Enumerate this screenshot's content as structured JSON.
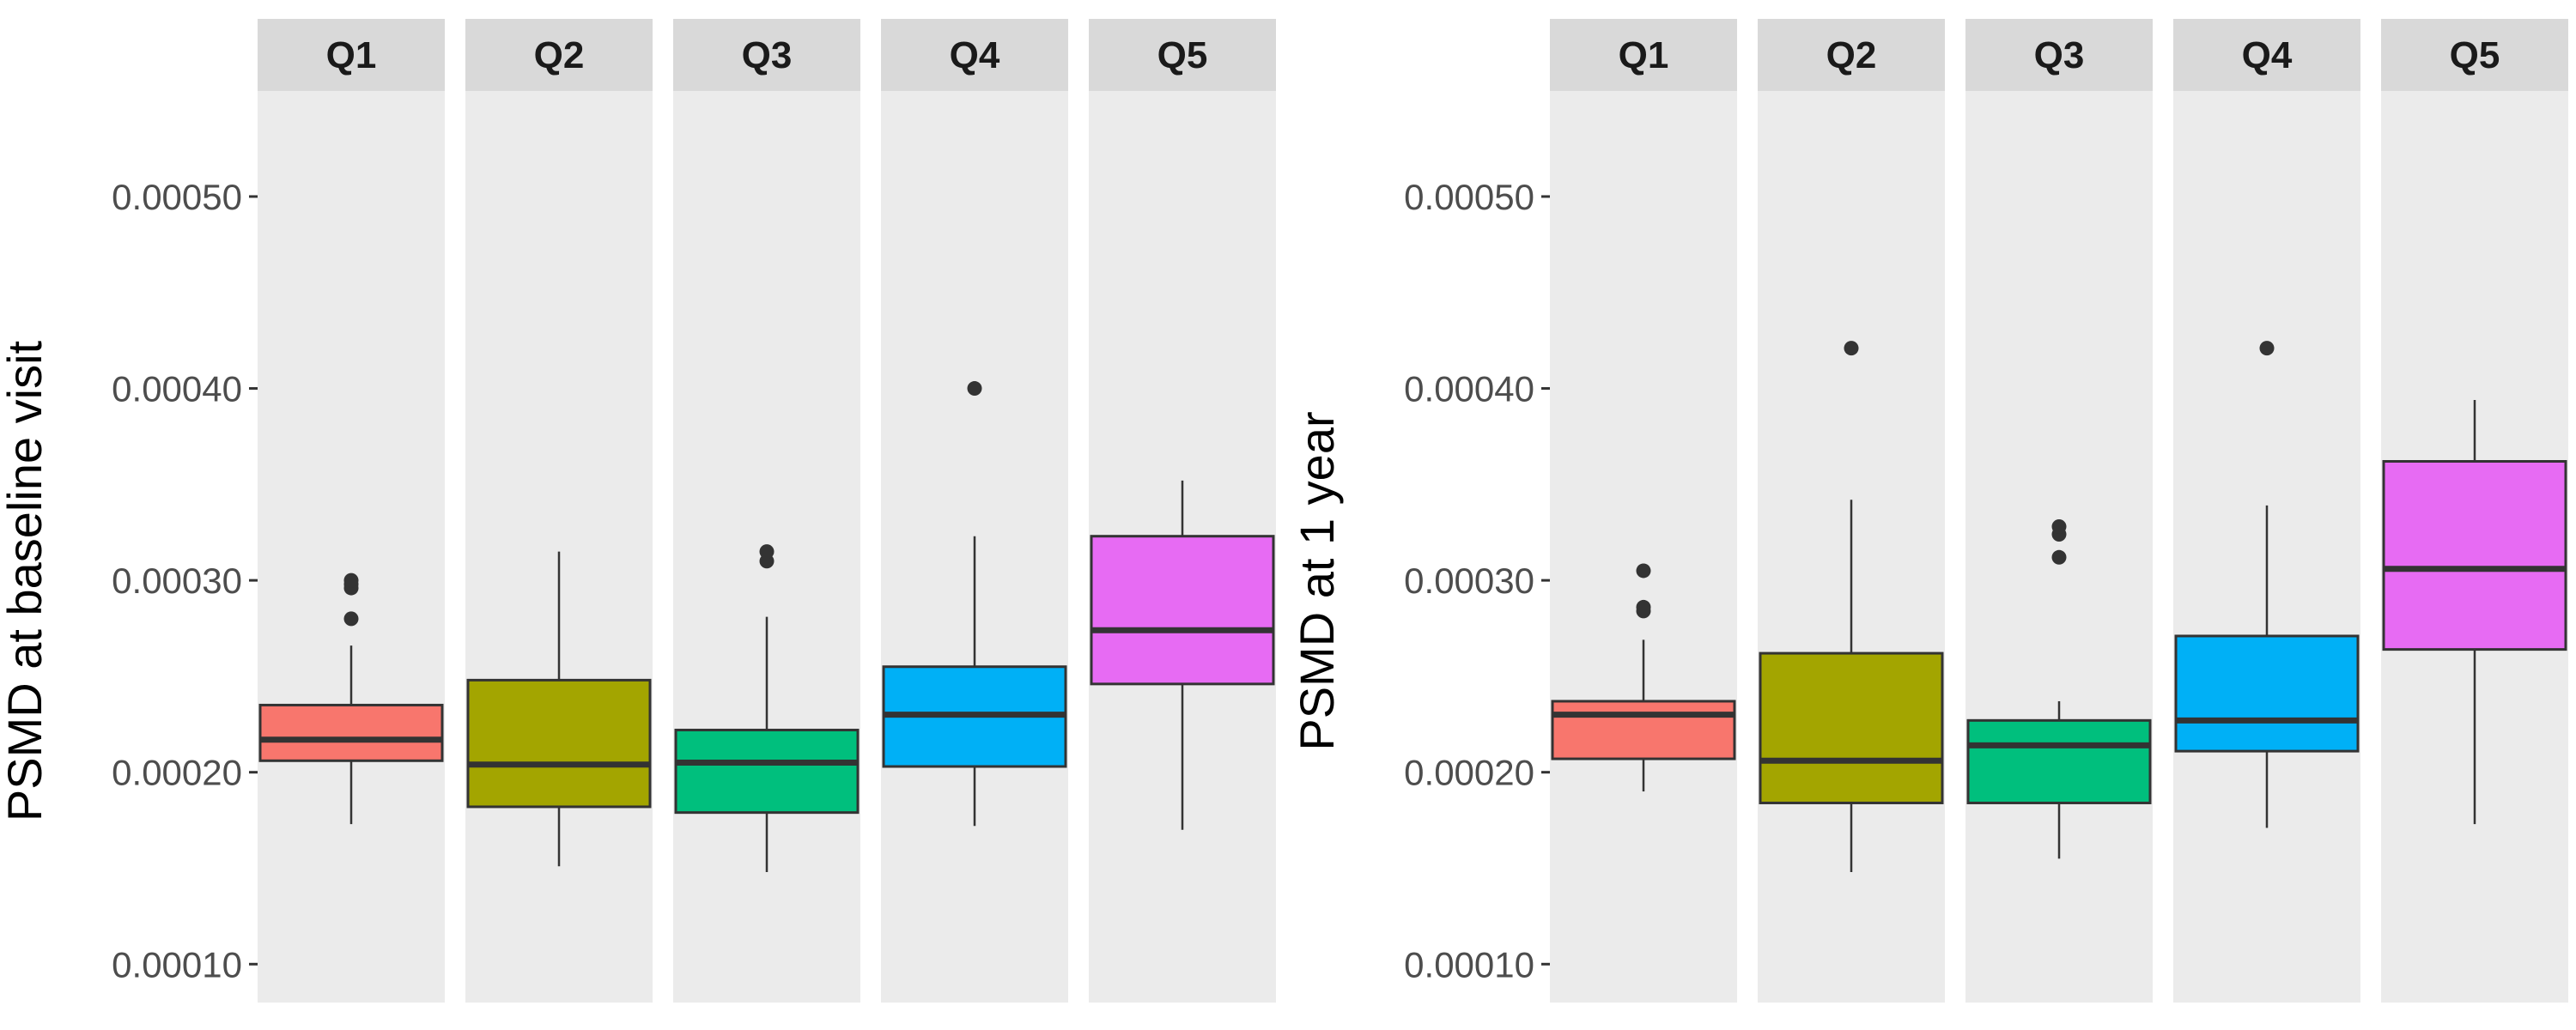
{
  "chart_data": [
    {
      "type": "boxplot",
      "facet": "left",
      "title": "",
      "xlabel": "",
      "ylabel": "PSMD at baseline visit",
      "ylim": [
        8e-05,
        0.000555
      ],
      "yticks": [
        0.0001,
        0.0002,
        0.0003,
        0.0004,
        0.0005
      ],
      "ytick_labels": [
        "0.00010",
        "0.00020",
        "0.00030",
        "0.00040",
        "0.00050"
      ],
      "panels": [
        {
          "label": "Q1",
          "color": "#F8766D",
          "whisker_low": 0.000173,
          "q1": 0.000206,
          "median": 0.000217,
          "q3": 0.000235,
          "whisker_high": 0.000266,
          "outliers": [
            0.00028,
            0.000296,
            0.000298,
            0.0003
          ]
        },
        {
          "label": "Q2",
          "color": "#A3A500",
          "whisker_low": 0.000151,
          "q1": 0.000182,
          "median": 0.000204,
          "q3": 0.000248,
          "whisker_high": 0.000315,
          "outliers": []
        },
        {
          "label": "Q3",
          "color": "#00BF7D",
          "whisker_low": 0.000148,
          "q1": 0.000179,
          "median": 0.000205,
          "q3": 0.000222,
          "whisker_high": 0.000281,
          "outliers": [
            0.00031,
            0.000315
          ]
        },
        {
          "label": "Q4",
          "color": "#00B0F6",
          "whisker_low": 0.000172,
          "q1": 0.000203,
          "median": 0.00023,
          "q3": 0.000255,
          "whisker_high": 0.000323,
          "outliers": [
            0.0004
          ]
        },
        {
          "label": "Q5",
          "color": "#E76BF3",
          "whisker_low": 0.00017,
          "q1": 0.000246,
          "median": 0.000274,
          "q3": 0.000323,
          "whisker_high": 0.000352,
          "outliers": []
        }
      ]
    },
    {
      "type": "boxplot",
      "facet": "right",
      "title": "",
      "xlabel": "",
      "ylabel": "PSMD at 1 year",
      "ylim": [
        8e-05,
        0.000555
      ],
      "yticks": [
        0.0001,
        0.0002,
        0.0003,
        0.0004,
        0.0005
      ],
      "ytick_labels": [
        "0.00010",
        "0.00020",
        "0.00030",
        "0.00040",
        "0.00050"
      ],
      "panels": [
        {
          "label": "Q1",
          "color": "#F8766D",
          "whisker_low": 0.00019,
          "q1": 0.000207,
          "median": 0.00023,
          "q3": 0.000237,
          "whisker_high": 0.000269,
          "outliers": [
            0.000284,
            0.000286,
            0.000305
          ]
        },
        {
          "label": "Q2",
          "color": "#A3A500",
          "whisker_low": 0.000148,
          "q1": 0.000184,
          "median": 0.000206,
          "q3": 0.000262,
          "whisker_high": 0.000342,
          "outliers": [
            0.000421
          ]
        },
        {
          "label": "Q3",
          "color": "#00BF7D",
          "whisker_low": 0.000155,
          "q1": 0.000184,
          "median": 0.000214,
          "q3": 0.000227,
          "whisker_high": 0.000237,
          "outliers": [
            0.000312,
            0.000324,
            0.000328
          ]
        },
        {
          "label": "Q4",
          "color": "#00B0F6",
          "whisker_low": 0.000171,
          "q1": 0.000211,
          "median": 0.000227,
          "q3": 0.000271,
          "whisker_high": 0.000339,
          "outliers": [
            0.000421
          ]
        },
        {
          "label": "Q5",
          "color": "#E76BF3",
          "whisker_low": 0.000173,
          "q1": 0.000264,
          "median": 0.000306,
          "q3": 0.000362,
          "whisker_high": 0.000394,
          "outliers": []
        }
      ]
    }
  ],
  "colors": {
    "panel_background": "#EBEBEB",
    "strip_background": "#D9D9D9",
    "box_outline": "#333333",
    "whisker": "#333333",
    "tick_text": "#4D4D4D",
    "axis_title": "#000000"
  }
}
